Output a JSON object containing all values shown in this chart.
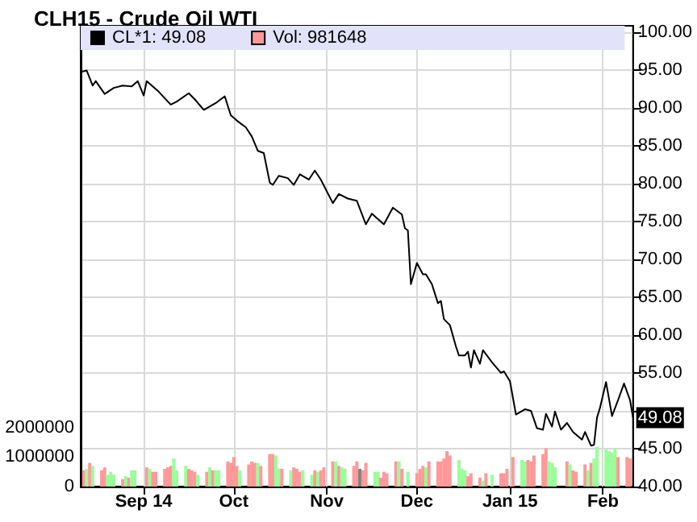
{
  "chart_data": {
    "type": "line",
    "title": "CLH15 - Crude Oil WTI",
    "xlim": [
      "2014-08-11",
      "2015-02-11"
    ],
    "xticks": [
      {
        "value": "2014-09-01",
        "label": "Sep 14"
      },
      {
        "value": "2014-10-01",
        "label": "Oct"
      },
      {
        "value": "2014-11-01",
        "label": "Nov"
      },
      {
        "value": "2014-12-01",
        "label": "Dec"
      },
      {
        "value": "2015-01-01",
        "label": "Jan 15"
      },
      {
        "value": "2015-02-01",
        "label": "Feb"
      }
    ],
    "ylim": [
      40,
      100.8
    ],
    "yticks": [
      {
        "value": 40,
        "label": "40.00"
      },
      {
        "value": 45,
        "label": "45.00"
      },
      {
        "value": 50,
        "label": null
      },
      {
        "value": 55,
        "label": "55.00"
      },
      {
        "value": 60,
        "label": "60.00"
      },
      {
        "value": 65,
        "label": "65.00"
      },
      {
        "value": 70,
        "label": "70.00"
      },
      {
        "value": 75,
        "label": "75.00"
      },
      {
        "value": 80,
        "label": "80.00"
      },
      {
        "value": 85,
        "label": "85.00"
      },
      {
        "value": 90,
        "label": "90.00"
      },
      {
        "value": 95,
        "label": "95.00"
      },
      {
        "value": 100,
        "label": "100.00"
      }
    ],
    "y2lim": [
      0,
      15600000
    ],
    "y2ticks": [
      0,
      1000000,
      2000000
    ],
    "grid": true,
    "legend": "top left",
    "marker": "none",
    "line_style": "solid",
    "annotations": [
      {
        "text": "49.08",
        "x": "2015-02-11",
        "y": 49.08
      }
    ],
    "series": [
      {
        "name": "CL*1: 49.08",
        "color": "#000000",
        "x": [
          "2014-08-11",
          "2014-08-13",
          "2014-08-15",
          "2014-08-16",
          "2014-08-19",
          "2014-08-22",
          "2014-08-25",
          "2014-08-28",
          "2014-08-30",
          "2014-09-01",
          "2014-09-02",
          "2014-09-06",
          "2014-09-10",
          "2014-09-12",
          "2014-09-16",
          "2014-09-18",
          "2014-09-21",
          "2014-09-25",
          "2014-09-28",
          "2014-09-30",
          "2014-10-02",
          "2014-10-05",
          "2014-10-07",
          "2014-10-09",
          "2014-10-11",
          "2014-10-13",
          "2014-10-14",
          "2014-10-16",
          "2014-10-19",
          "2014-10-21",
          "2014-10-23",
          "2014-10-26",
          "2014-10-28",
          "2014-10-30",
          "2014-11-03",
          "2014-11-05",
          "2014-11-08",
          "2014-11-11",
          "2014-11-14",
          "2014-11-16",
          "2014-11-20",
          "2014-11-23",
          "2014-11-26",
          "2014-11-27",
          "2014-11-28",
          "2014-11-29",
          "2014-12-01",
          "2014-12-03",
          "2014-12-04",
          "2014-12-06",
          "2014-12-08",
          "2014-12-09",
          "2014-12-10",
          "2014-12-12",
          "2014-12-14",
          "2014-12-15",
          "2014-12-17",
          "2014-12-18",
          "2014-12-19",
          "2014-12-20",
          "2014-12-22",
          "2014-12-23",
          "2014-12-26",
          "2014-12-29",
          "2014-12-30",
          "2015-01-01",
          "2015-01-03",
          "2015-01-06",
          "2015-01-08",
          "2015-01-10",
          "2015-01-12",
          "2015-01-13",
          "2015-01-15",
          "2015-01-16",
          "2015-01-18",
          "2015-01-20",
          "2015-01-22",
          "2015-01-25",
          "2015-01-26",
          "2015-01-28",
          "2015-01-29",
          "2015-01-30",
          "2015-01-31",
          "2015-02-02",
          "2015-02-04",
          "2015-02-06",
          "2015-02-08",
          "2015-02-10",
          "2015-02-11"
        ],
        "values": [
          94.7,
          94.9,
          92.9,
          93.5,
          91.8,
          92.6,
          92.9,
          92.8,
          93.5,
          91.6,
          93.5,
          92.1,
          90.4,
          90.8,
          91.9,
          91.1,
          89.7,
          90.6,
          91.5,
          89.0,
          88.3,
          87.4,
          86.2,
          84.3,
          84.0,
          80.1,
          79.8,
          81.0,
          80.7,
          79.8,
          81.2,
          80.5,
          81.7,
          80.5,
          77.4,
          78.6,
          78.0,
          77.7,
          74.6,
          76.0,
          74.6,
          76.8,
          75.9,
          74.1,
          73.8,
          66.7,
          69.5,
          68.0,
          68.0,
          66.7,
          64.2,
          64.5,
          62.1,
          61.3,
          58.5,
          57.3,
          57.3,
          57.8,
          55.7,
          58.0,
          56.2,
          58.0,
          56.4,
          55.0,
          55.2,
          53.9,
          49.5,
          50.2,
          50.0,
          47.7,
          47.5,
          49.6,
          47.9,
          49.9,
          47.5,
          48.4,
          47.2,
          46.2,
          47.2,
          45.4,
          45.5,
          49.1,
          50.4,
          53.8,
          49.3,
          51.4,
          53.6,
          51.4,
          49.08
        ]
      },
      {
        "name": "Vol: 981648",
        "type": "bar",
        "axis": "y2",
        "color": "#ff9999",
        "x": [
          "2014-08-12",
          "2014-08-13",
          "2014-08-14",
          "2014-08-15",
          "2014-08-18",
          "2014-08-19",
          "2014-08-20",
          "2014-08-21",
          "2014-08-22",
          "2014-08-25",
          "2014-08-26",
          "2014-08-27",
          "2014-08-28",
          "2014-08-29",
          "2014-09-02",
          "2014-09-03",
          "2014-09-04",
          "2014-09-05",
          "2014-09-08",
          "2014-09-09",
          "2014-09-10",
          "2014-09-11",
          "2014-09-12",
          "2014-09-15",
          "2014-09-16",
          "2014-09-17",
          "2014-09-18",
          "2014-09-19",
          "2014-09-22",
          "2014-09-23",
          "2014-09-24",
          "2014-09-25",
          "2014-09-26",
          "2014-09-29",
          "2014-09-30",
          "2014-10-01",
          "2014-10-02",
          "2014-10-03",
          "2014-10-06",
          "2014-10-07",
          "2014-10-08",
          "2014-10-09",
          "2014-10-10",
          "2014-10-13",
          "2014-10-14",
          "2014-10-15",
          "2014-10-16",
          "2014-10-17",
          "2014-10-20",
          "2014-10-21",
          "2014-10-22",
          "2014-10-23",
          "2014-10-24",
          "2014-10-27",
          "2014-10-28",
          "2014-10-29",
          "2014-10-30",
          "2014-10-31",
          "2014-11-03",
          "2014-11-04",
          "2014-11-05",
          "2014-11-06",
          "2014-11-07",
          "2014-11-10",
          "2014-11-11",
          "2014-11-12",
          "2014-11-13",
          "2014-11-14",
          "2014-11-17",
          "2014-11-18",
          "2014-11-19",
          "2014-11-20",
          "2014-11-21",
          "2014-11-24",
          "2014-11-25",
          "2014-11-26",
          "2014-11-28",
          "2014-12-01",
          "2014-12-02",
          "2014-12-03",
          "2014-12-04",
          "2014-12-05",
          "2014-12-08",
          "2014-12-09",
          "2014-12-10",
          "2014-12-11",
          "2014-12-12",
          "2014-12-15",
          "2014-12-16",
          "2014-12-17",
          "2014-12-18",
          "2014-12-19",
          "2014-12-22",
          "2014-12-23",
          "2014-12-24",
          "2014-12-26",
          "2014-12-29",
          "2014-12-30",
          "2014-12-31",
          "2015-01-02",
          "2015-01-05",
          "2015-01-06",
          "2015-01-07",
          "2015-01-08",
          "2015-01-09",
          "2015-01-12",
          "2015-01-13",
          "2015-01-14",
          "2015-01-15",
          "2015-01-16",
          "2015-01-20",
          "2015-01-21",
          "2015-01-22",
          "2015-01-23",
          "2015-01-26",
          "2015-01-27",
          "2015-01-28",
          "2015-01-29",
          "2015-01-30",
          "2015-02-02",
          "2015-02-03",
          "2015-02-04",
          "2015-02-05",
          "2015-02-06",
          "2015-02-09",
          "2015-02-10"
        ],
        "values": [
          550000,
          600000,
          800000,
          700000,
          550000,
          650000,
          400000,
          500000,
          400000,
          250000,
          350000,
          300000,
          550000,
          550000,
          650000,
          600000,
          500000,
          500000,
          600000,
          650000,
          700000,
          950000,
          550000,
          700000,
          600000,
          550000,
          500000,
          400000,
          500000,
          650000,
          550000,
          550000,
          550000,
          850000,
          800000,
          1000000,
          700000,
          550000,
          750000,
          850000,
          800000,
          800000,
          700000,
          1100000,
          1100000,
          1050000,
          600000,
          600000,
          550000,
          650000,
          600000,
          500000,
          550000,
          400000,
          550000,
          500000,
          550000,
          650000,
          850000,
          850000,
          700000,
          650000,
          600000,
          700000,
          850000,
          600000,
          550000,
          800000,
          500000,
          500000,
          300000,
          500000,
          450000,
          850000,
          850000,
          600000,
          500000,
          450000,
          600000,
          700000,
          650000,
          850000,
          850000,
          850000,
          950000,
          1200000,
          1050000,
          900000,
          600000,
          550000,
          350000,
          450000,
          300000,
          200000,
          450000,
          400000,
          450000,
          450000,
          600000,
          1000000,
          900000,
          850000,
          900000,
          850000,
          1050000,
          1100000,
          1300000,
          850000,
          800000,
          650000,
          850000,
          750000,
          550000,
          500000,
          750000,
          550000,
          800000,
          950000,
          1350000,
          1250000,
          1200000,
          1150000,
          1300000,
          1000000,
          1000000,
          950000
        ],
        "colors": [
          "#ff9999",
          "#99ff99",
          "#ff9999",
          "#99ff99",
          "#ff9999",
          "#ff9999",
          "#99ff99",
          "#99ff99",
          "#99ff99",
          "#ff9999",
          "#99ff99",
          "#ff9999",
          "#99ff99",
          "#99ff99",
          "#ff9999",
          "#99ff99",
          "#ff9999",
          "#ff9999",
          "#ff9999",
          "#ff9999",
          "#ff9999",
          "#99ff99",
          "#99ff99",
          "#99ff99",
          "#ff9999",
          "#ff9999",
          "#ff9999",
          "#99ff99",
          "#ff9999",
          "#99ff99",
          "#ff9999",
          "#99ff99",
          "#99ff99",
          "#ff9999",
          "#ff9999",
          "#ff9999",
          "#ff9999",
          "#99ff99",
          "#ff9999",
          "#ff9999",
          "#ff9999",
          "#99ff99",
          "#ff9999",
          "#ff9999",
          "#ff9999",
          "#99ff99",
          "#99ff99",
          "#ff9999",
          "#99ff99",
          "#ff9999",
          "#ff9999",
          "#ff9999",
          "#99ff99",
          "#99ff99",
          "#ff9999",
          "#99ff99",
          "#ff9999",
          "#ff9999",
          "#ff9999",
          "#99ff99",
          "#ff9999",
          "#99ff99",
          "#99ff99",
          "#ff9999",
          "#ff9999",
          "#808080",
          "#ff9999",
          "#ff9999",
          "#99ff99",
          "#99ff99",
          "#ff9999",
          "#ff9999",
          "#ff9999",
          "#ff9999",
          "#99ff99",
          "#ff9999",
          "#99ff99",
          "#ff9999",
          "#ff9999",
          "#ff9999",
          "#99ff99",
          "#ff9999",
          "#ff9999",
          "#ff9999",
          "#ff9999",
          "#ff9999",
          "#ff9999",
          "#99ff99",
          "#99ff99",
          "#99ff99",
          "#ff9999",
          "#ff9999",
          "#ff9999",
          "#99ff99",
          "#ff9999",
          "#99ff99",
          "#ff9999",
          "#ff9999",
          "#ff9999",
          "#ff9999",
          "#99ff99",
          "#99ff99",
          "#ff9999",
          "#ff9999",
          "#ff9999",
          "#ff9999",
          "#ff9999",
          "#99ff99",
          "#99ff99",
          "#99ff99",
          "#ff9999",
          "#99ff99",
          "#ff9999",
          "#ff9999",
          "#ff9999",
          "#99ff99",
          "#ff9999",
          "#99ff99",
          "#99ff99",
          "#99ff99",
          "#99ff99",
          "#99ff99",
          "#99ff99",
          "#ff9999",
          "#ff9999",
          "#ff9999"
        ]
      }
    ]
  }
}
